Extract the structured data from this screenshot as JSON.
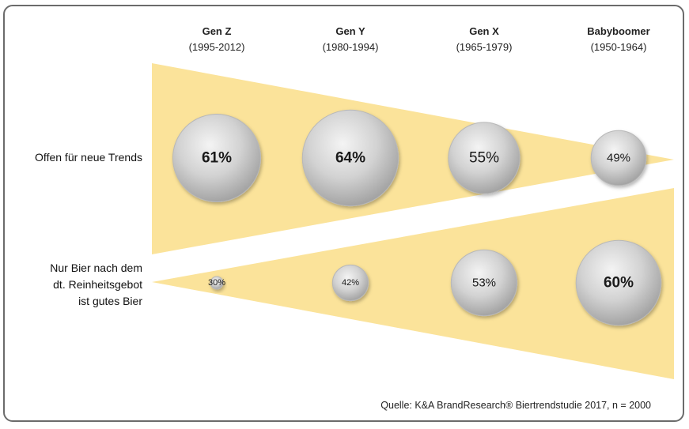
{
  "chart_data": {
    "type": "bubble",
    "categories": [
      {
        "name": "Gen Z",
        "range": "(1995-2012)"
      },
      {
        "name": "Gen Y",
        "range": "(1980-1994)"
      },
      {
        "name": "Gen X",
        "range": "(1965-1979)"
      },
      {
        "name": "Babyboomer",
        "range": "(1950-1964)"
      }
    ],
    "series": [
      {
        "name": "Offen für neue Trends",
        "label_lines": [
          "Offen für neue Trends"
        ],
        "values": [
          61,
          64,
          55,
          49
        ],
        "labels": [
          "61%",
          "64%",
          "55%",
          "49%"
        ]
      },
      {
        "name": "Nur Bier nach dem dt. Reinheitsgebot ist gutes Bier",
        "label_lines": [
          "Nur Bier nach dem",
          "dt. Reinheitsgebot",
          "ist gutes Bier"
        ],
        "values": [
          30,
          42,
          53,
          60
        ],
        "labels": [
          "30%",
          "42%",
          "53%",
          "60%"
        ]
      }
    ],
    "source": "Quelle: K&A BrandResearch® Biertrendstudie 2017, n = 2000"
  },
  "colors": {
    "wedge": "#fbe39a",
    "bubble_light": "#efefef",
    "bubble_dark": "#a9a9a9",
    "frame": "#6b6b6b"
  }
}
